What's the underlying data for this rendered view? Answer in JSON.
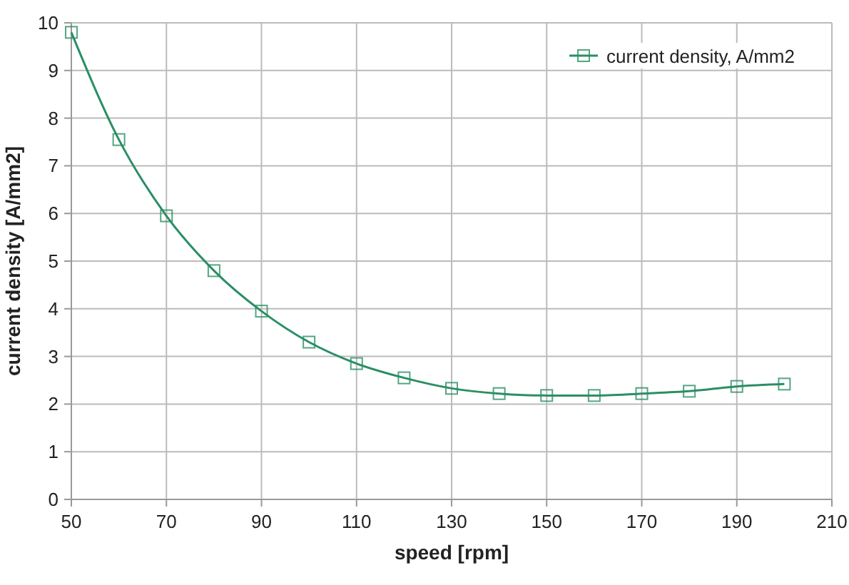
{
  "chart_data": {
    "type": "line",
    "xlabel": "speed [rpm]",
    "ylabel": "current density [A/mm2]",
    "x": [
      50,
      60,
      70,
      80,
      90,
      100,
      110,
      120,
      130,
      140,
      150,
      160,
      170,
      180,
      190,
      200
    ],
    "series": [
      {
        "name": "current density, A/mm2",
        "color": "#2a8f64",
        "values": [
          9.8,
          7.55,
          5.95,
          4.8,
          3.95,
          3.3,
          2.85,
          2.55,
          2.33,
          2.22,
          2.18,
          2.18,
          2.22,
          2.27,
          2.37,
          2.42
        ]
      }
    ],
    "xlim": [
      50,
      210
    ],
    "xticks": [
      50,
      70,
      90,
      110,
      130,
      150,
      170,
      190,
      210
    ],
    "ylim": [
      0,
      10
    ],
    "yticks": [
      0,
      1,
      2,
      3,
      4,
      5,
      6,
      7,
      8,
      9,
      10
    ],
    "grid": true,
    "legend": "top right",
    "marker": "square",
    "line_style": "solid"
  }
}
